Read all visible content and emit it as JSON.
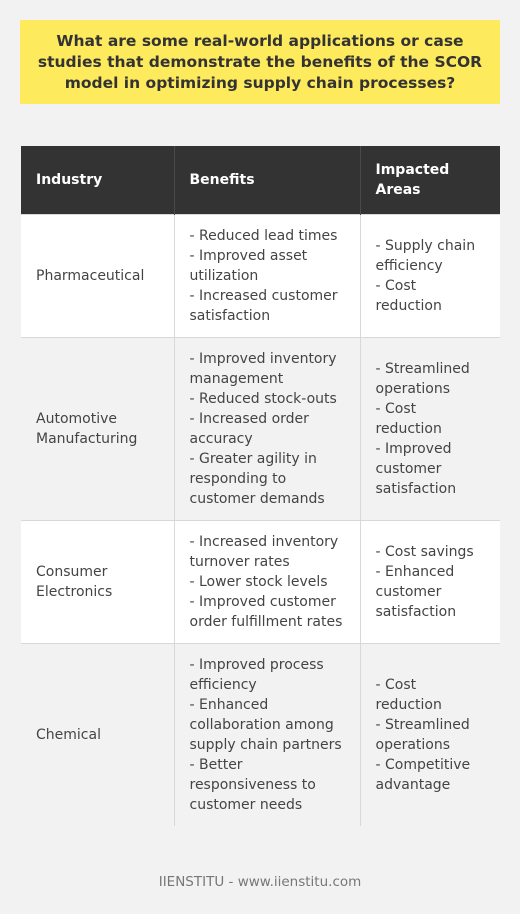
{
  "title": "What are some real-world applications or case studies that demonstrate the benefits of the SCOR model in optimizing supply chain processes?",
  "table": {
    "headers": [
      "Industry",
      "Benefits",
      "Impacted Areas"
    ],
    "rows": [
      {
        "industry": "Pharmaceutical",
        "benefits": [
          "- Reduced lead times",
          "- Improved asset utilization",
          "- Increased customer satisfaction"
        ],
        "areas": [
          "- Supply chain efficiency",
          "- Cost reduction"
        ]
      },
      {
        "industry": "Automotive Manufacturing",
        "benefits": [
          "- Improved inventory management",
          "- Reduced stock-outs",
          "- Increased order accuracy",
          "- Greater agility in responding to customer demands"
        ],
        "areas": [
          "- Streamlined operations",
          "- Cost reduction",
          "- Improved customer satisfaction"
        ]
      },
      {
        "industry": "Consumer Electronics",
        "benefits": [
          "- Increased inventory turnover rates",
          "- Lower stock levels",
          "- Improved customer order fulfillment rates"
        ],
        "areas": [
          "- Cost savings",
          "- Enhanced customer satisfaction"
        ]
      },
      {
        "industry": "Chemical",
        "benefits": [
          "- Improved process efficiency",
          "- Enhanced collaboration among supply chain partners",
          "- Better responsiveness to customer needs"
        ],
        "areas": [
          "- Cost reduction",
          "- Streamlined operations",
          "- Competitive advantage"
        ]
      }
    ]
  },
  "footer": "IIENSTITU - www.iienstitu.com"
}
